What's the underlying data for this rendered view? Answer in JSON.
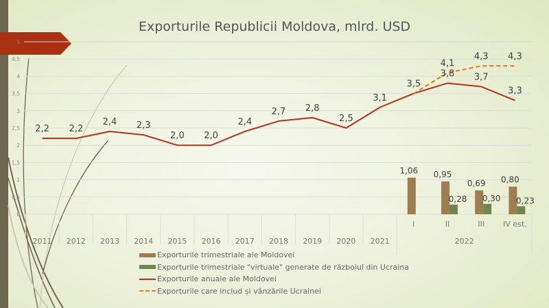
{
  "chart_data": {
    "type": "bar+line",
    "title": "Exporturile Republicii Moldova, mlrd. USD",
    "ylim": [
      0,
      5
    ],
    "yticks": [
      "0",
      "0,5",
      "1",
      "1,5",
      "2",
      "2,5",
      "3",
      "3,5",
      "4",
      "4,5",
      "5"
    ],
    "ytick_values": [
      0,
      0.5,
      1,
      1.5,
      2,
      2.5,
      3,
      3.5,
      4,
      4.5,
      5
    ],
    "grid": true,
    "categories": [
      "2011",
      "2012",
      "2013",
      "2014",
      "2015",
      "2016",
      "2017",
      "2018",
      "2019",
      "2020",
      "2021",
      "I",
      "II",
      "III",
      "IV est."
    ],
    "group_label": "2022",
    "legend_position": "bottom",
    "series": [
      {
        "name": "Exporturile trimestriale ale Moldovei",
        "kind": "bar",
        "color": "#9E7D50",
        "values": [
          null,
          null,
          null,
          null,
          null,
          null,
          null,
          null,
          null,
          null,
          null,
          1.06,
          0.95,
          0.69,
          0.8
        ],
        "labels": [
          null,
          null,
          null,
          null,
          null,
          null,
          null,
          null,
          null,
          null,
          null,
          "1,06",
          "0,95",
          "0,69",
          "0,80"
        ]
      },
      {
        "name": "Exporturile trimestriale \"virtuale\" generate de războiul din Ucraina",
        "kind": "bar",
        "color": "#6E8650",
        "values": [
          null,
          null,
          null,
          null,
          null,
          null,
          null,
          null,
          null,
          null,
          null,
          null,
          0.28,
          0.3,
          0.23
        ],
        "labels": [
          null,
          null,
          null,
          null,
          null,
          null,
          null,
          null,
          null,
          null,
          null,
          null,
          "0,28",
          "0,30",
          "0,23"
        ]
      },
      {
        "name": "Exporturile anuale ale Moldovei",
        "kind": "line",
        "color": "#B5321A",
        "values": [
          2.2,
          2.2,
          2.4,
          2.3,
          2.0,
          2.0,
          2.4,
          2.7,
          2.8,
          2.5,
          3.1,
          3.5,
          3.8,
          3.7,
          3.3
        ],
        "labels": [
          "2,2",
          "2,2",
          "2,4",
          "2,3",
          "2,0",
          "2,0",
          "2,4",
          "2,7",
          "2,8",
          "2,5",
          "3,1",
          "3,5",
          "3,8",
          "3,7",
          "3,3"
        ]
      },
      {
        "name": "Exporturile care includ și vânzările Ucrainei",
        "kind": "dashed-line",
        "color": "#E07B1F",
        "values": [
          null,
          null,
          null,
          null,
          null,
          null,
          null,
          null,
          null,
          null,
          null,
          3.5,
          4.1,
          4.3,
          4.3
        ],
        "labels": [
          null,
          null,
          null,
          null,
          null,
          null,
          null,
          null,
          null,
          null,
          null,
          null,
          "4,1",
          "4,3",
          "4,3"
        ]
      }
    ]
  },
  "theme": {
    "banner": "#A93010",
    "sidebar": "#6F6650",
    "grid": "#dcdcd6",
    "axis_text": "#777777",
    "label_text": "#404040"
  }
}
